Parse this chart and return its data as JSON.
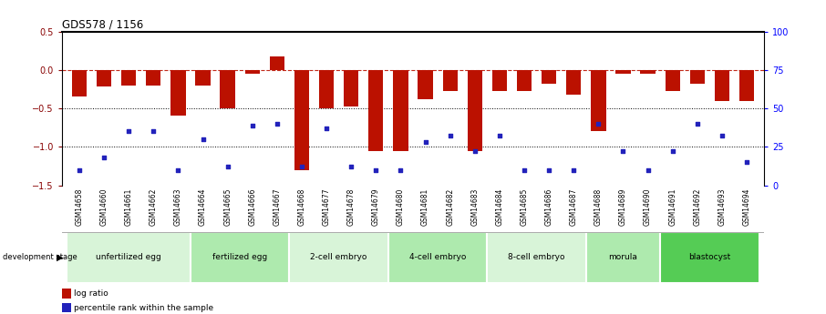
{
  "title": "GDS578 / 1156",
  "samples": [
    "GSM14658",
    "GSM14660",
    "GSM14661",
    "GSM14662",
    "GSM14663",
    "GSM14664",
    "GSM14665",
    "GSM14666",
    "GSM14667",
    "GSM14668",
    "GSM14677",
    "GSM14678",
    "GSM14679",
    "GSM14680",
    "GSM14681",
    "GSM14682",
    "GSM14683",
    "GSM14684",
    "GSM14685",
    "GSM14686",
    "GSM14687",
    "GSM14688",
    "GSM14689",
    "GSM14690",
    "GSM14691",
    "GSM14692",
    "GSM14693",
    "GSM14694"
  ],
  "log_ratio": [
    -0.35,
    -0.22,
    -0.2,
    -0.2,
    -0.6,
    -0.2,
    -0.5,
    -0.05,
    0.17,
    -1.3,
    -0.5,
    -0.48,
    -1.05,
    -1.05,
    -0.38,
    -0.28,
    -1.05,
    -0.28,
    -0.28,
    -0.18,
    -0.32,
    -0.8,
    -0.05,
    -0.05,
    -0.28,
    -0.18,
    -0.4,
    -0.4
  ],
  "percentile": [
    10,
    18,
    35,
    35,
    10,
    30,
    12,
    39,
    40,
    12,
    37,
    12,
    10,
    10,
    28,
    32,
    22,
    32,
    10,
    10,
    10,
    40,
    22,
    10,
    22,
    40,
    32,
    15
  ],
  "stages": [
    {
      "label": "unfertilized egg",
      "start": 0,
      "end": 5,
      "color": "#d8f4d8"
    },
    {
      "label": "fertilized egg",
      "start": 5,
      "end": 9,
      "color": "#aeeaae"
    },
    {
      "label": "2-cell embryo",
      "start": 9,
      "end": 13,
      "color": "#d8f4d8"
    },
    {
      "label": "4-cell embryo",
      "start": 13,
      "end": 17,
      "color": "#aeeaae"
    },
    {
      "label": "8-cell embryo",
      "start": 17,
      "end": 21,
      "color": "#d8f4d8"
    },
    {
      "label": "morula",
      "start": 21,
      "end": 24,
      "color": "#aeeaae"
    },
    {
      "label": "blastocyst",
      "start": 24,
      "end": 28,
      "color": "#55cc55"
    }
  ],
  "bar_color": "#bb1100",
  "dot_color": "#2222bb",
  "ylim_left": [
    -1.5,
    0.5
  ],
  "ylim_right": [
    0,
    100
  ],
  "background_color": "#ffffff"
}
